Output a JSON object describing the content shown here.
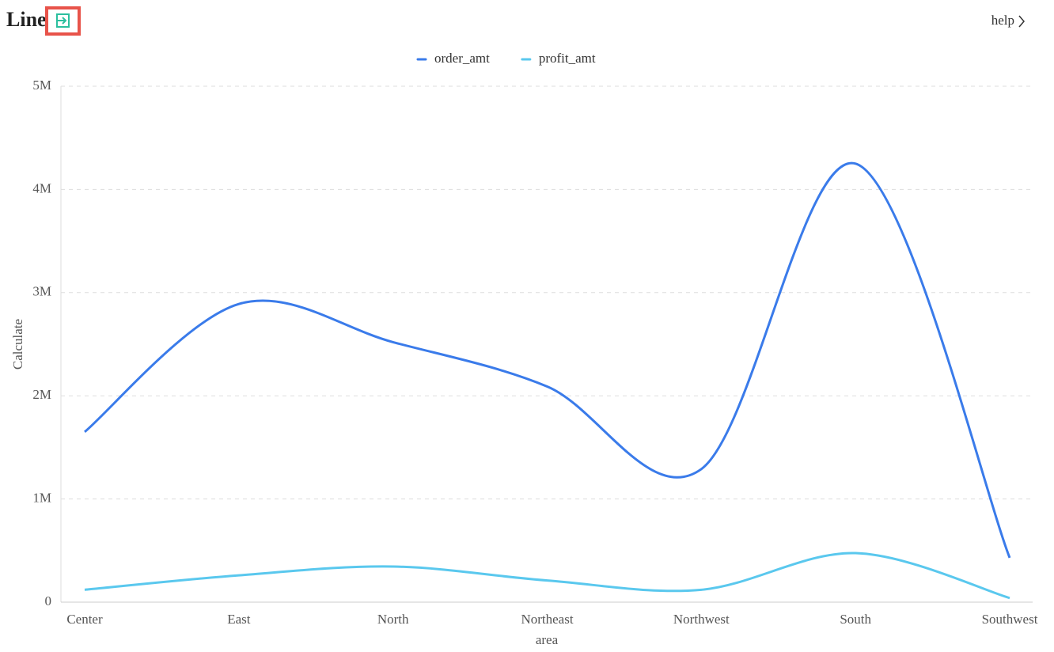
{
  "header": {
    "title": "Line",
    "help": "help"
  },
  "chart_data": {
    "type": "line",
    "x_label": "area",
    "y_label": "Calculate",
    "categories": [
      "Center",
      "East",
      "North",
      "Northeast",
      "Northwest",
      "South",
      "Southwest"
    ],
    "series": [
      {
        "name": "order_amt",
        "color": "#3a7bea",
        "values": [
          1650000,
          2890000,
          2520000,
          2090000,
          1290000,
          4250000,
          430000
        ]
      },
      {
        "name": "profit_amt",
        "color": "#5ac8ee",
        "values": [
          120000,
          260000,
          345000,
          210000,
          120000,
          475000,
          40000
        ]
      }
    ],
    "ylim": [
      0,
      5000000
    ],
    "yticks": [
      0,
      {
        "value": 1000000,
        "label": "1M"
      },
      {
        "value": 2000000,
        "label": "2M"
      },
      {
        "value": 3000000,
        "label": "3M"
      },
      {
        "value": 4000000,
        "label": "4M"
      },
      {
        "value": 5000000,
        "label": "5M"
      }
    ],
    "grid": true,
    "smooth": true,
    "legend": "top"
  }
}
